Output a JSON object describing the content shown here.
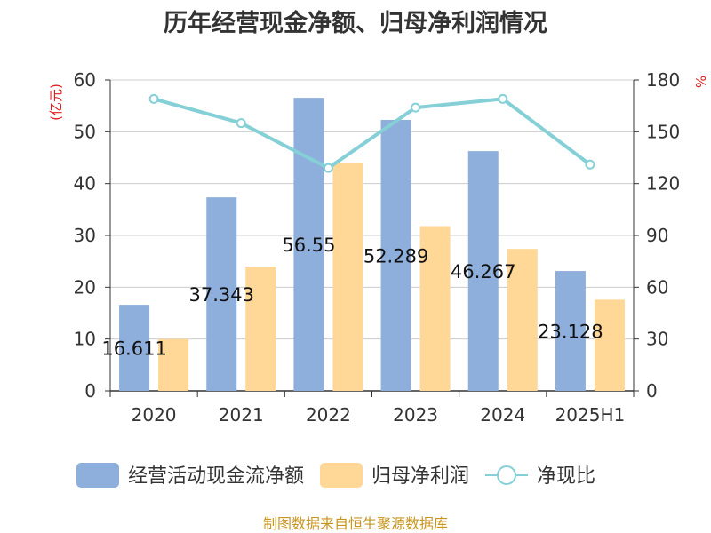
{
  "chart_data": {
    "type": "bar",
    "title": "历年经营现金净额、归母净利润情况",
    "categories": [
      "2020",
      "2021",
      "2022",
      "2023",
      "2024",
      "2025H1"
    ],
    "series": [
      {
        "name": "经营活动现金流净额",
        "kind": "bar",
        "axis": "left",
        "color": "#8eaedb",
        "values": [
          16.611,
          37.343,
          56.55,
          52.289,
          46.267,
          23.128
        ],
        "labels": [
          "16.611",
          "37.343",
          "56.55",
          "52.289",
          "46.267",
          "23.128"
        ]
      },
      {
        "name": "归母净利润",
        "kind": "bar",
        "axis": "left",
        "color": "#ffd797",
        "values": [
          10.0,
          24.0,
          44.0,
          31.8,
          27.4,
          17.6
        ]
      },
      {
        "name": "净现比",
        "kind": "line",
        "axis": "right",
        "color": "#85d0d6",
        "values": [
          169,
          155,
          129,
          164,
          169,
          131
        ]
      }
    ],
    "y_left": {
      "unit": "(亿元)",
      "min": 0,
      "max": 60,
      "ticks": [
        0,
        10,
        20,
        30,
        40,
        50,
        60
      ]
    },
    "y_right": {
      "unit": "%",
      "min": 0,
      "max": 180,
      "ticks": [
        0,
        30,
        60,
        90,
        120,
        150,
        180
      ]
    },
    "grid": true,
    "legend_position": "bottom",
    "unit_color": "#e02020"
  },
  "source_text": "制图数据来自恒生聚源数据库",
  "source_color": "#c8951f"
}
